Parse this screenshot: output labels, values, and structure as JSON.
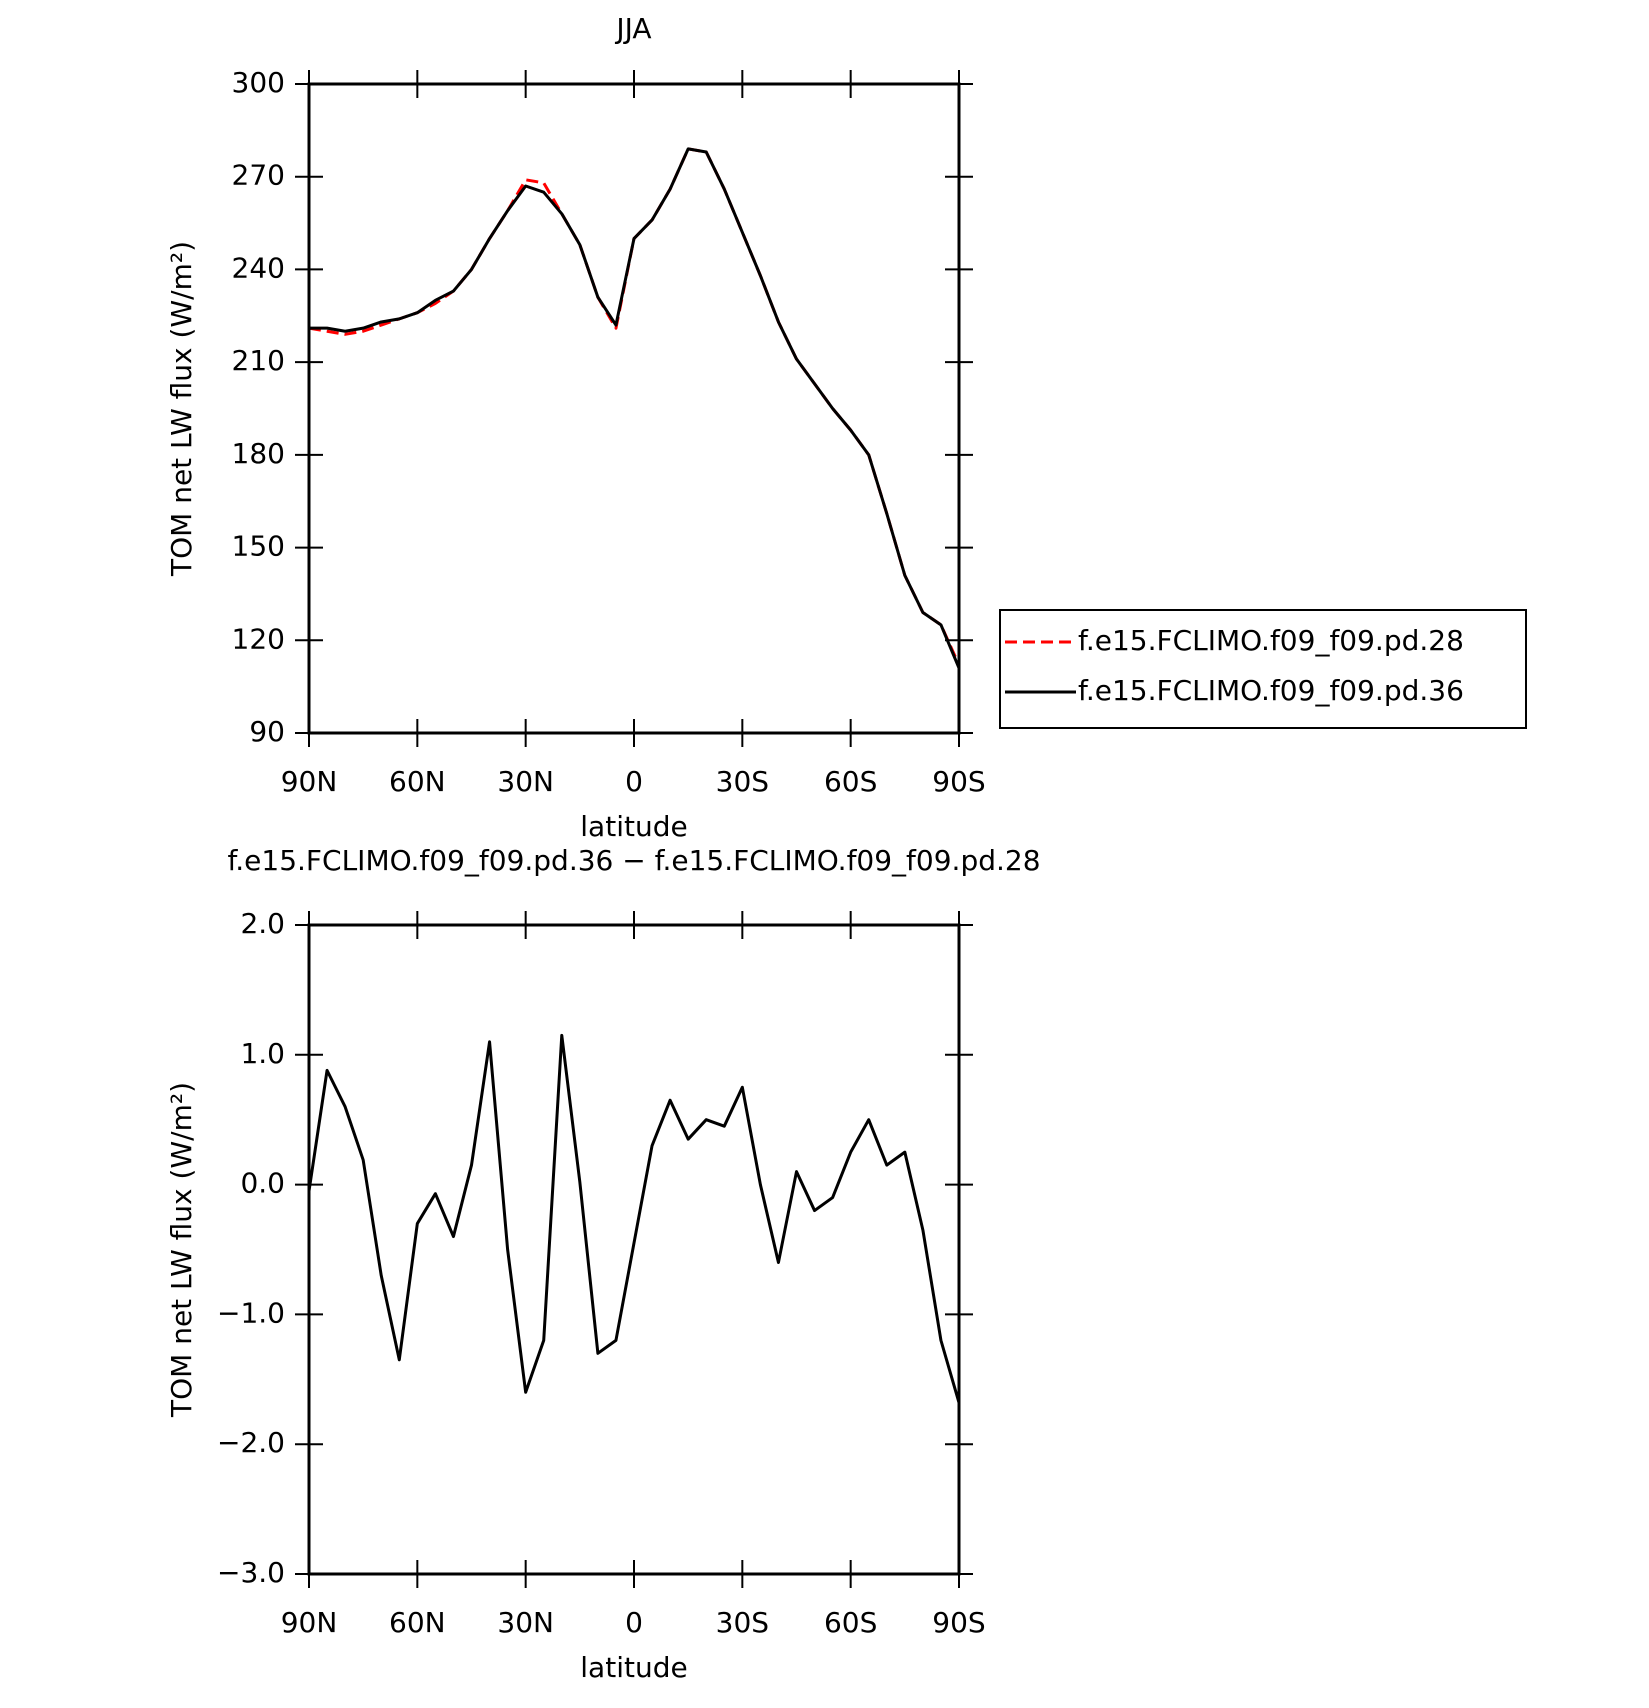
{
  "chart_data": [
    {
      "type": "line",
      "title": "JJA",
      "x_label": "latitude",
      "y_label": "TOM net LW flux (W/m²)",
      "x": [
        90,
        85,
        80,
        75,
        70,
        65,
        60,
        55,
        50,
        45,
        40,
        35,
        30,
        25,
        20,
        15,
        10,
        5,
        0,
        -5,
        -10,
        -15,
        -20,
        -25,
        -30,
        -35,
        -40,
        -45,
        -50,
        -55,
        -60,
        -65,
        -70,
        -75,
        -80,
        -85,
        -90
      ],
      "series": [
        {
          "name": "f.e15.FCLIMO.f09_f09.pd.28",
          "color": "#ff0000",
          "dash": true,
          "values": [
            221,
            220,
            219,
            220,
            222,
            224,
            226,
            229,
            233,
            240,
            250,
            259,
            269,
            268,
            258,
            248,
            231,
            221,
            250,
            256,
            266,
            279,
            278,
            266,
            252,
            238,
            223,
            211,
            203,
            195,
            188,
            180,
            161,
            141,
            129,
            125,
            112
          ]
        },
        {
          "name": "f.e15.FCLIMO.f09_f09.pd.36",
          "color": "#000000",
          "dash": false,
          "values": [
            221,
            221,
            220,
            221,
            223,
            224,
            226,
            230,
            233,
            240,
            250,
            259,
            267,
            265,
            258,
            248,
            231,
            222,
            250,
            256,
            266,
            279,
            278,
            266,
            252,
            238,
            223,
            211,
            203,
            195,
            188,
            180,
            161,
            141,
            129,
            125,
            111
          ]
        }
      ],
      "xlim": [
        90,
        -90
      ],
      "xticks": [
        {
          "value": 90,
          "label": "90N"
        },
        {
          "value": 60,
          "label": "60N"
        },
        {
          "value": 30,
          "label": "30N"
        },
        0,
        {
          "value": -30,
          "label": "30S"
        },
        {
          "value": -60,
          "label": "60S"
        },
        {
          "value": -90,
          "label": "90S"
        }
      ],
      "ylim": [
        90,
        300
      ],
      "yticks": [
        90,
        120,
        150,
        180,
        210,
        240,
        270,
        300
      ],
      "legend": "right"
    },
    {
      "type": "line",
      "title": "f.e15.FCLIMO.f09_f09.pd.36 − f.e15.FCLIMO.f09_f09.pd.28",
      "x_label": "latitude",
      "y_label": "TOM net LW flux (W/m²)",
      "x": [
        90,
        85,
        80,
        75,
        70,
        65,
        60,
        55,
        50,
        45,
        40,
        35,
        30,
        25,
        20,
        15,
        10,
        5,
        0,
        -5,
        -10,
        -15,
        -20,
        -25,
        -30,
        -35,
        -40,
        -45,
        -50,
        -55,
        -60,
        -65,
        -70,
        -75,
        -80,
        -85,
        -90
      ],
      "series": [
        {
          "color": "#000000",
          "dash": false,
          "values": [
            -0.05,
            0.88,
            0.6,
            0.19,
            -0.7,
            -1.35,
            -0.3,
            -0.07,
            -0.4,
            0.15,
            1.1,
            -0.5,
            -1.6,
            -1.2,
            1.15,
            0.02,
            -1.3,
            -1.2,
            -0.45,
            0.3,
            0.65,
            0.35,
            0.5,
            0.45,
            0.75,
            0.0,
            -0.6,
            0.1,
            -0.2,
            -0.1,
            0.25,
            0.5,
            0.15,
            0.25,
            -0.35,
            -1.2,
            -1.68
          ]
        }
      ],
      "xlim": [
        90,
        -90
      ],
      "xticks": [
        {
          "value": 90,
          "label": "90N"
        },
        {
          "value": 60,
          "label": "60N"
        },
        {
          "value": 30,
          "label": "30N"
        },
        0,
        {
          "value": -30,
          "label": "30S"
        },
        {
          "value": -60,
          "label": "60S"
        },
        {
          "value": -90,
          "label": "90S"
        }
      ],
      "ylim": [
        -3,
        2
      ],
      "yticks": [
        {
          "value": -3,
          "label": "−3.0"
        },
        {
          "value": -2,
          "label": "−2.0"
        },
        {
          "value": -1,
          "label": "−1.0"
        },
        {
          "value": 0,
          "label": "0.0"
        },
        {
          "value": 1,
          "label": "1.0"
        },
        {
          "value": 2,
          "label": "2.0"
        }
      ]
    }
  ]
}
